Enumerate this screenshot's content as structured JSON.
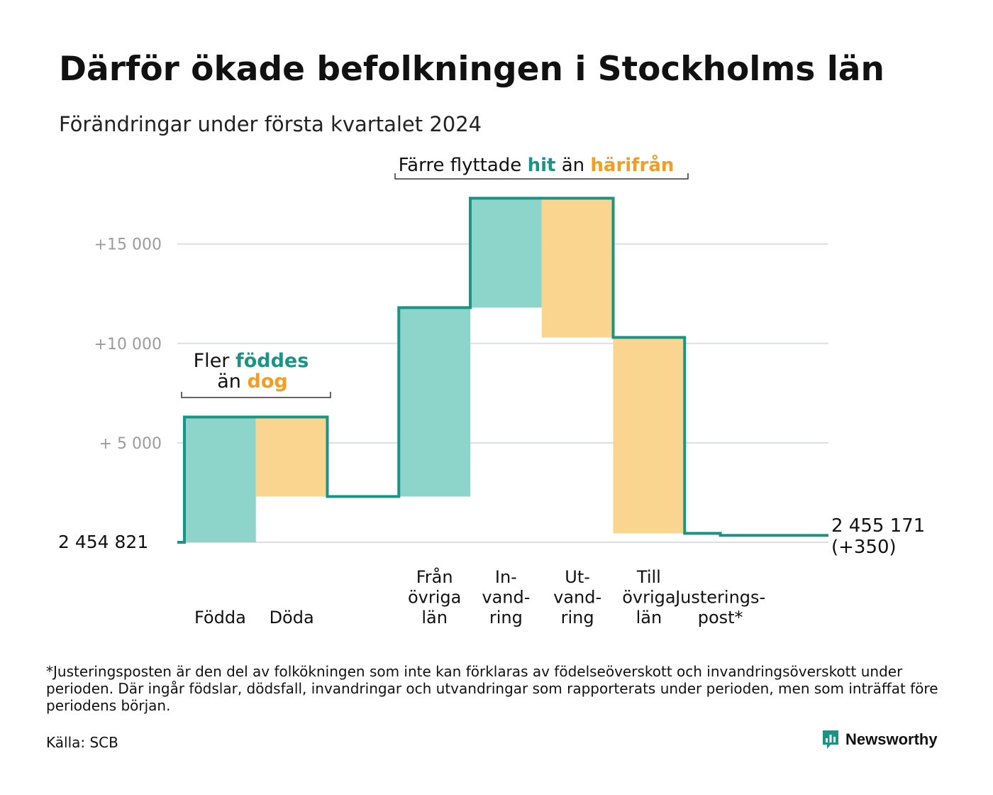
{
  "title": "Därför ökade befolkningen i Stockholms län",
  "subtitle": "Förändringar under första kvartalet 2024",
  "colors": {
    "teal": "#1a9585",
    "teal_fill": "#8dd4cb",
    "orange": "#f39d21",
    "orange_fill": "#fad58f",
    "grid": "#dcdfe3",
    "tick": "#9b9b9b",
    "text": "#111111"
  },
  "chart_data": {
    "type": "waterfall",
    "baseline": 2454821,
    "baseline_label": "2  454   821",
    "ylim": [
      0,
      17500
    ],
    "grid": true,
    "y_ticks": [
      {
        "value": 5000,
        "label": "+  5  000"
      },
      {
        "value": 10000,
        "label": "+10   000"
      },
      {
        "value": 15000,
        "label": "+15   000"
      }
    ],
    "steps": [
      {
        "label": "Födda",
        "label_lines": [
          "Födda"
        ],
        "value": 6300,
        "kind": "plus"
      },
      {
        "label": "Döda",
        "label_lines": [
          "Döda"
        ],
        "value": -4000,
        "kind": "minus"
      },
      {
        "label": "",
        "label_lines": [],
        "value": 0,
        "kind": "gap"
      },
      {
        "label": "Från övriga län",
        "label_lines": [
          "Från",
          "övriga",
          "län"
        ],
        "value": 9500,
        "kind": "plus"
      },
      {
        "label": "Invandring",
        "label_lines": [
          "In-",
          "vand-",
          "ring"
        ],
        "value": 5500,
        "kind": "plus"
      },
      {
        "label": "Utvandring",
        "label_lines": [
          "Ut-",
          "vand-",
          "ring"
        ],
        "value": -7000,
        "kind": "minus"
      },
      {
        "label": "Till övriga län",
        "label_lines": [
          "Till",
          "övriga",
          "län"
        ],
        "value": -9850,
        "kind": "minus"
      },
      {
        "label": "Justeringspost*",
        "label_lines": [
          "Justerings-",
          "post*"
        ],
        "value": -100,
        "kind": "adjust"
      }
    ],
    "end_label": "2 455 171",
    "end_change": "(+350)",
    "annotations": {
      "births": {
        "line1_a": "Fler ",
        "line1_b": "föddes",
        "line2_a": "än ",
        "line2_b": "dog"
      },
      "moves": {
        "a": "Färre flyttade ",
        "b": "hit",
        "c": " än ",
        "d": "härifrån"
      }
    }
  },
  "footnote": "*Justeringsposten är den del av folkökningen som inte kan förklaras av födelseöverskott och invandringsöverskott under perioden. Där ingår födslar, dödsfall, invandringar och utvandringar som rapporterats under perioden, men som inträffat före periodens början.",
  "source": "Källa: SCB",
  "brand": {
    "name": "Newsworthy",
    "icon": "newsworthy-logo-icon"
  }
}
